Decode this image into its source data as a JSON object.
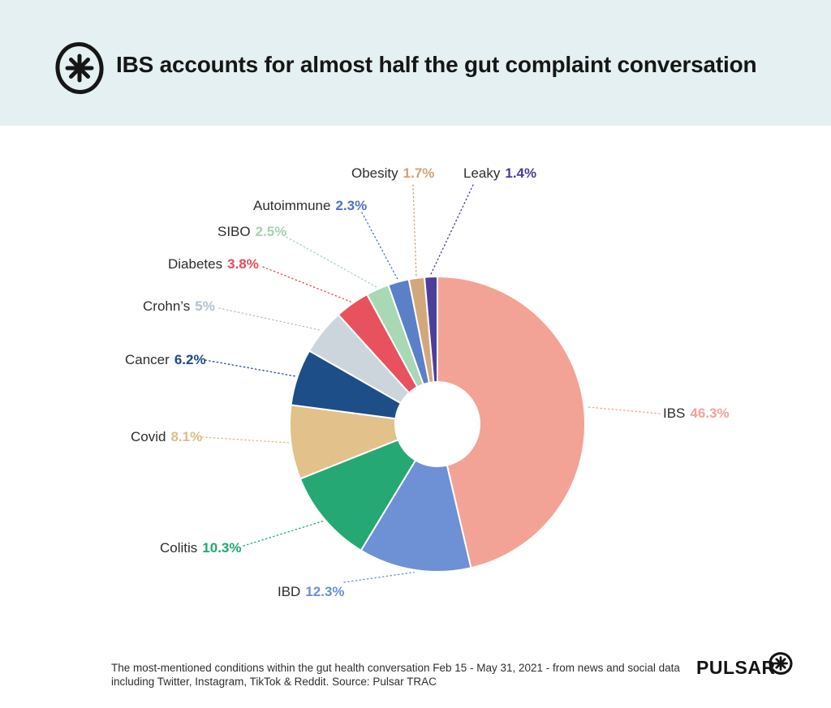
{
  "header": {
    "title": "IBS accounts for almost half the gut complaint conversation",
    "logo": "asterisk-circle"
  },
  "chart_data": {
    "type": "pie",
    "subtype": "donut",
    "title": "IBS accounts for almost half the gut complaint conversation",
    "unit": "%",
    "direction": "clockwise",
    "start_angle_deg": 0,
    "donut_hole_ratio": 0.286,
    "legend_position": "outside-labels-with-dotted-leaders",
    "slices": [
      {
        "name": "IBS",
        "value": 46.3,
        "display_value": "46.3%",
        "color": "#f2a396",
        "label_color": "#f0a396"
      },
      {
        "name": "IBD",
        "value": 12.3,
        "display_value": "12.3%",
        "color": "#6e90d4",
        "label_color": "#6d8fd6"
      },
      {
        "name": "Colitis",
        "value": 10.3,
        "display_value": "10.3%",
        "color": "#25a874",
        "label_color": "#21a873"
      },
      {
        "name": "Covid",
        "value": 8.1,
        "display_value": "8.1%",
        "color": "#e2c28a",
        "label_color": "#ddbd85"
      },
      {
        "name": "Cancer",
        "value": 6.2,
        "display_value": "6.2%",
        "color": "#1d4e88",
        "label_color": "#1d4a85"
      },
      {
        "name": "Crohn’s",
        "value": 5,
        "display_value": "5%",
        "color": "#cdd5dc",
        "label_color": "#b3c2cf"
      },
      {
        "name": "Diabetes",
        "value": 3.8,
        "display_value": "3.8%",
        "color": "#e8525f",
        "label_color": "#e84b59"
      },
      {
        "name": "SIBO",
        "value": 2.5,
        "display_value": "2.5%",
        "color": "#a9d8b5",
        "label_color": "#a2d5b1"
      },
      {
        "name": "Autoimmune",
        "value": 2.3,
        "display_value": "2.3%",
        "color": "#5c80c7",
        "label_color": "#4e73c6"
      },
      {
        "name": "Obesity",
        "value": 1.7,
        "display_value": "1.7%",
        "color": "#d2a87b",
        "label_color": "#d2a171"
      },
      {
        "name": "Leaky",
        "value": 1.4,
        "display_value": "1.4%",
        "color": "#4c3e9b",
        "label_color": "#4b3a9e"
      }
    ]
  },
  "footer": {
    "caption_lines": [
      "The most-mentioned conditions within the gut health conversation Feb 15 - May 31, 2021 - from news and social data",
      "including Twitter, Instagram, TikTok & Reddit. Source: Pulsar TRAC"
    ],
    "brand": "PULSAR"
  }
}
